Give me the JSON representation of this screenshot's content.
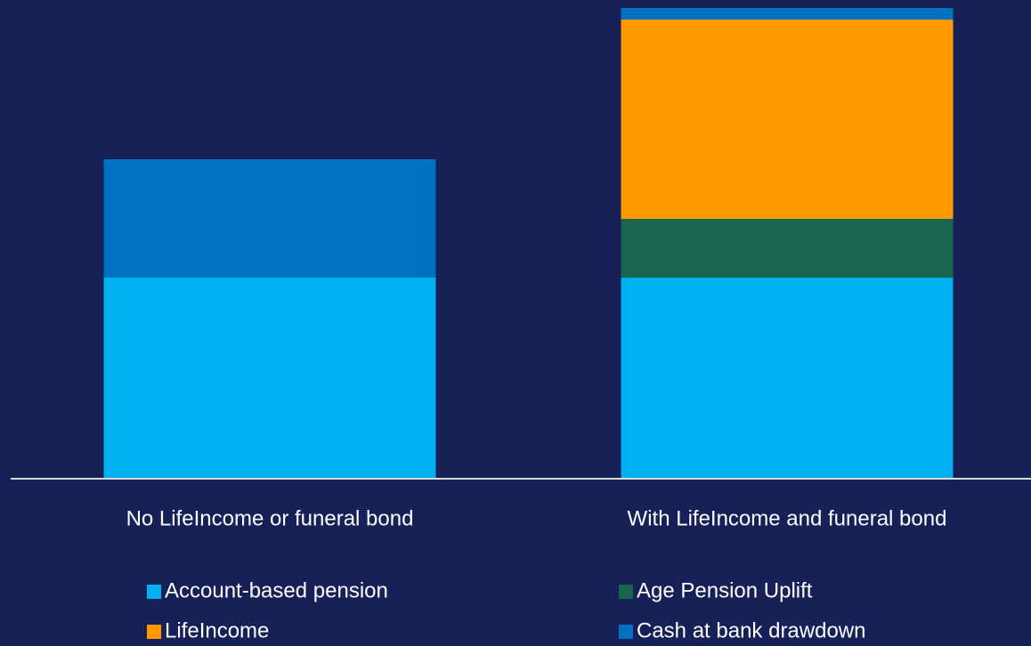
{
  "chart_data": {
    "type": "stacked_bar",
    "categories": [
      "No LifeIncome or funeral bond",
      "With LifeIncome and funeral bond"
    ],
    "series": [
      {
        "name": "Account-based pension",
        "color": "#00b0f0",
        "values": [
          226,
          226
        ]
      },
      {
        "name": "Age Pension Uplift",
        "color": "#1a6450",
        "values": [
          0,
          66
        ]
      },
      {
        "name": "LifeIncome",
        "color": "#ff9900",
        "values": [
          0,
          224
        ]
      },
      {
        "name": "Cash at bank drawdown",
        "color": "#0070c0",
        "values": [
          133,
          13
        ]
      }
    ],
    "ylim": [
      0,
      538
    ]
  }
}
